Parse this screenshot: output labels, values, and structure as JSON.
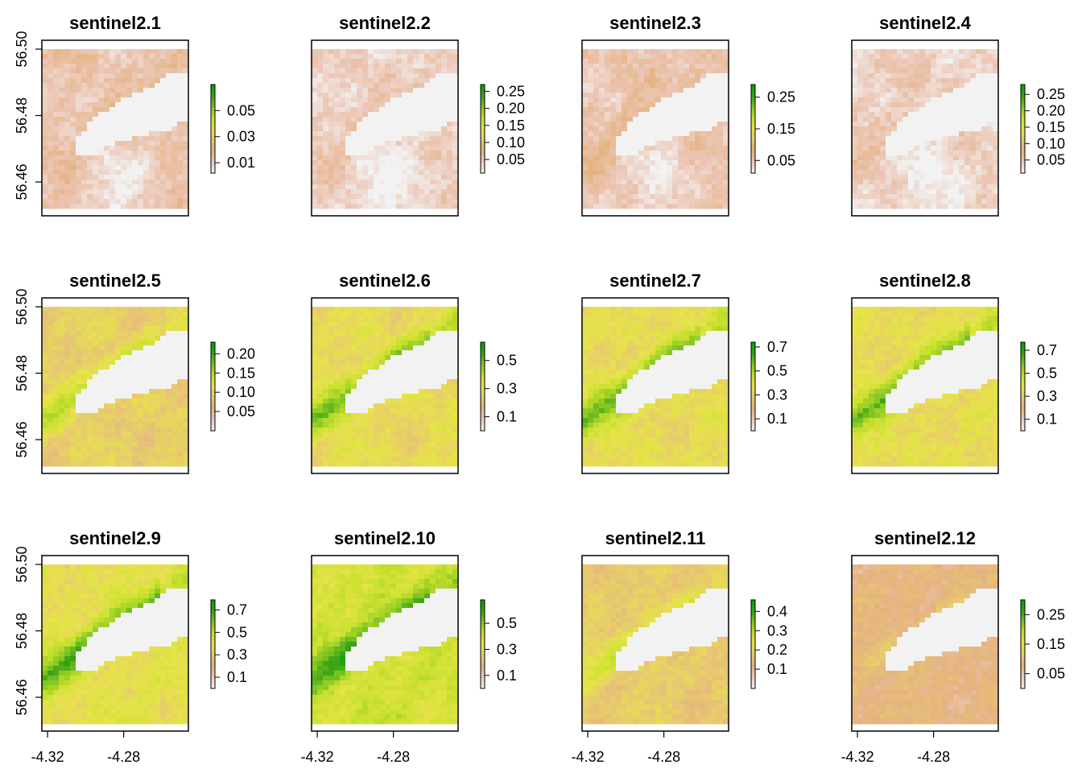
{
  "chart_data": {
    "type": "heatmap",
    "layout": "3x4",
    "x_axis": {
      "ticks": [
        -4.32,
        -4.28
      ],
      "tick_labels": [
        "-4.32",
        "-4.28"
      ],
      "xlim": [
        -4.323,
        -4.246
      ]
    },
    "y_axis": {
      "ticks": [
        56.46,
        56.48,
        56.5
      ],
      "tick_labels": [
        "56.46",
        "56.48",
        "56.50"
      ],
      "ylim": [
        56.452,
        56.5
      ]
    },
    "palette": [
      "#f2f2f2",
      "#ecc7b6",
      "#e5b280",
      "#e7c970",
      "#e6e34a",
      "#c8e02e",
      "#86c823",
      "#3da318",
      "#00a600"
    ],
    "legend_placement": "right",
    "panels": [
      {
        "title": "sentinel2.1",
        "range": [
          0.002,
          0.07
        ],
        "legend_ticks": [
          "0.05",
          "0.03",
          "0.01"
        ],
        "legend_values": [
          0.05,
          0.03,
          0.01
        ]
      },
      {
        "title": "sentinel2.2",
        "range": [
          0.01,
          0.27
        ],
        "legend_ticks": [
          "0.25",
          "0.20",
          "0.15",
          "0.10",
          "0.05"
        ],
        "legend_values": [
          0.25,
          0.2,
          0.15,
          0.1,
          0.05
        ]
      },
      {
        "title": "sentinel2.3",
        "range": [
          0.01,
          0.29
        ],
        "legend_ticks": [
          "0.25",
          "0.15",
          "0.05"
        ],
        "legend_values": [
          0.25,
          0.15,
          0.05
        ]
      },
      {
        "title": "sentinel2.4",
        "range": [
          0.01,
          0.28
        ],
        "legend_ticks": [
          "0.25",
          "0.20",
          "0.15",
          "0.10",
          "0.05"
        ],
        "legend_values": [
          0.25,
          0.2,
          0.15,
          0.1,
          0.05
        ]
      },
      {
        "title": "sentinel2.5",
        "range": [
          0.0,
          0.23
        ],
        "legend_ticks": [
          "0.20",
          "0.15",
          "0.10",
          "0.05"
        ],
        "legend_values": [
          0.2,
          0.15,
          0.1,
          0.05
        ]
      },
      {
        "title": "sentinel2.6",
        "range": [
          0.0,
          0.63
        ],
        "legend_ticks": [
          "0.5",
          "0.3",
          "0.1"
        ],
        "legend_values": [
          0.5,
          0.3,
          0.1
        ]
      },
      {
        "title": "sentinel2.7",
        "range": [
          0.0,
          0.74
        ],
        "legend_ticks": [
          "0.7",
          "0.5",
          "0.3",
          "0.1"
        ],
        "legend_values": [
          0.7,
          0.5,
          0.3,
          0.1
        ]
      },
      {
        "title": "sentinel2.8",
        "range": [
          0.0,
          0.77
        ],
        "legend_ticks": [
          "0.7",
          "0.5",
          "0.3",
          "0.1"
        ],
        "legend_values": [
          0.7,
          0.5,
          0.3,
          0.1
        ]
      },
      {
        "title": "sentinel2.9",
        "range": [
          0.0,
          0.79
        ],
        "legend_ticks": [
          "0.7",
          "0.5",
          "0.3",
          "0.1"
        ],
        "legend_values": [
          0.7,
          0.5,
          0.3,
          0.1
        ]
      },
      {
        "title": "sentinel2.10",
        "range": [
          0.0,
          0.68
        ],
        "legend_ticks": [
          "0.5",
          "0.3",
          "0.1"
        ],
        "legend_values": [
          0.5,
          0.3,
          0.1
        ]
      },
      {
        "title": "sentinel2.11",
        "range": [
          0.0,
          0.46
        ],
        "legend_ticks": [
          "0.4",
          "0.3",
          "0.2",
          "0.1"
        ],
        "legend_values": [
          0.4,
          0.3,
          0.2,
          0.1
        ]
      },
      {
        "title": "sentinel2.12",
        "range": [
          0.0,
          0.3
        ],
        "legend_ticks": [
          "0.25",
          "0.15",
          "0.05"
        ],
        "legend_values": [
          0.25,
          0.15,
          0.05
        ]
      }
    ]
  }
}
